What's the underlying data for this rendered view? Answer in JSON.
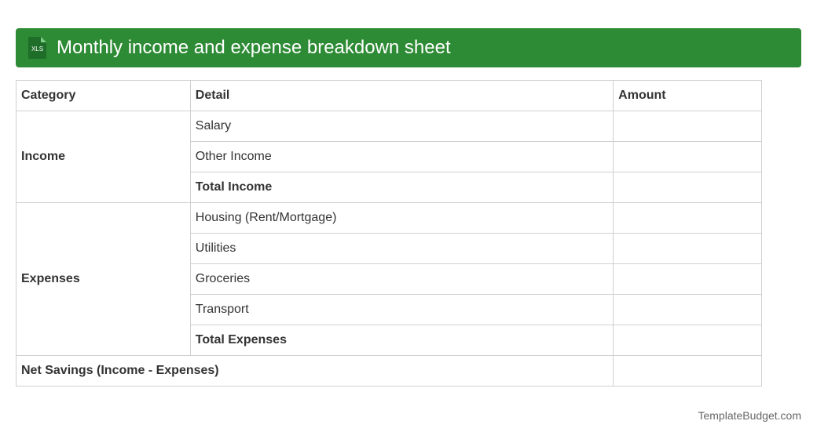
{
  "header": {
    "icon_label": "XLS",
    "title": "Monthly income and expense breakdown sheet"
  },
  "table": {
    "columns": [
      "Category",
      "Detail",
      "Amount"
    ],
    "groups": [
      {
        "category": "Income",
        "details": [
          "Salary",
          "Other Income",
          "Total Income"
        ]
      },
      {
        "category": "Expenses",
        "details": [
          "Housing (Rent/Mortgage)",
          "Utilities",
          "Groceries",
          "Transport",
          "Total Expenses"
        ]
      }
    ],
    "net_savings": "Net Savings (Income - Expenses)"
  },
  "footer": "TemplateBudget.com"
}
